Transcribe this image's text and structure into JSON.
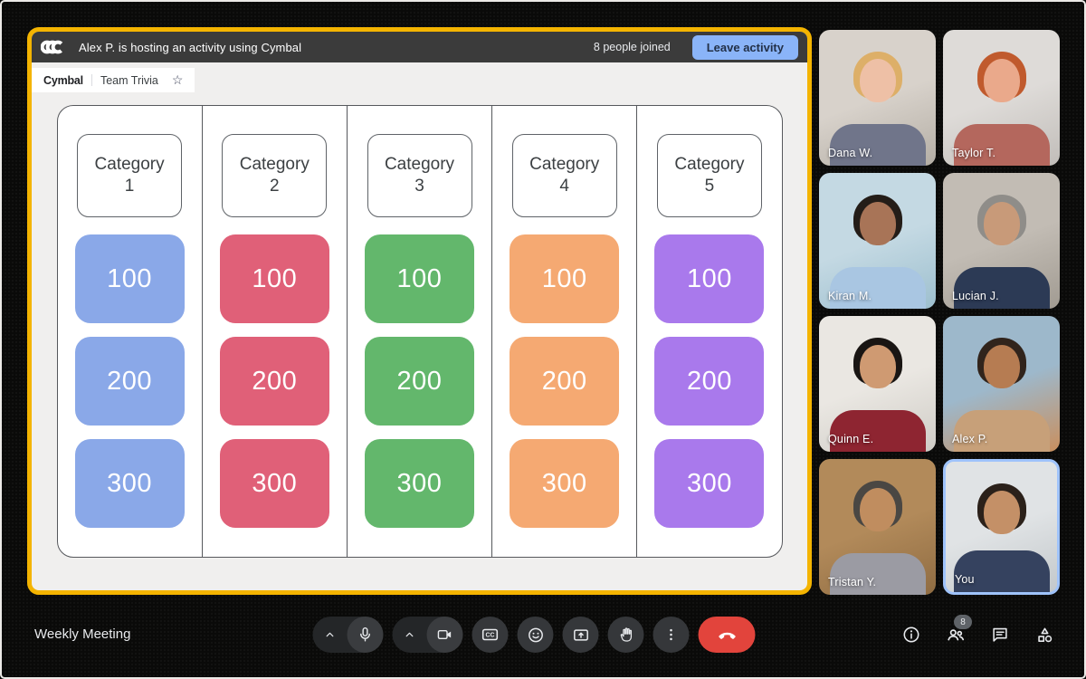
{
  "activity_banner": {
    "title": "Alex P. is hosting an activity using Cymbal",
    "people_joined": "8 people joined",
    "leave_button": "Leave activity",
    "leave_button_color": "#8AB4F8",
    "bar_color": "#3B3B3B"
  },
  "tab": {
    "brand": "Cymbal",
    "title": "Team Trivia",
    "star": "☆"
  },
  "frame_color": "#F4B400",
  "board": {
    "columns": [
      {
        "title_line1": "Category",
        "title_line2": "1",
        "tile_color": "#8AA8E8",
        "values": [
          "100",
          "200",
          "300"
        ]
      },
      {
        "title_line1": "Category",
        "title_line2": "2",
        "tile_color": "#E06078",
        "values": [
          "100",
          "200",
          "300"
        ]
      },
      {
        "title_line1": "Category",
        "title_line2": "3",
        "tile_color": "#63B76C",
        "values": [
          "100",
          "200",
          "300"
        ]
      },
      {
        "title_line1": "Category",
        "title_line2": "4",
        "tile_color": "#F5A972",
        "values": [
          "100",
          "200",
          "300"
        ]
      },
      {
        "title_line1": "Category",
        "title_line2": "5",
        "tile_color": "#A979EC",
        "values": [
          "100",
          "200",
          "300"
        ]
      }
    ]
  },
  "participants": [
    {
      "name": "Dana W.",
      "is_self": false,
      "bg1": "#d8d2cb",
      "bg2": "#b4aea5",
      "hair": "#ddaf68",
      "skin": "#eec0a6",
      "shirt": "#70758a"
    },
    {
      "name": "Taylor T.",
      "is_self": false,
      "bg1": "#dedbd8",
      "bg2": "#c1bdb9",
      "hair": "#c05a2d",
      "skin": "#eaa98b",
      "shirt": "#b4675d"
    },
    {
      "name": "Kiran M.",
      "is_self": false,
      "bg1": "#c4d9e3",
      "bg2": "#9dbfce",
      "hair": "#241d18",
      "skin": "#a87457",
      "shirt": "#a9c6e2"
    },
    {
      "name": "Lucian J.",
      "is_self": false,
      "bg1": "#c2bcb4",
      "bg2": "#a19b92",
      "hair": "#8f8d89",
      "skin": "#c89a79",
      "shirt": "#2c3a55"
    },
    {
      "name": "Quinn E.",
      "is_self": false,
      "bg1": "#eae7e2",
      "bg2": "#cfccc6",
      "hair": "#191513",
      "skin": "#cf9a72",
      "shirt": "#8e2531"
    },
    {
      "name": "Alex P.",
      "is_self": false,
      "bg1": "#9db8cb",
      "bg2": "#c98f5e",
      "hair": "#31241c",
      "skin": "#b67c52",
      "shirt": "#c7a079"
    },
    {
      "name": "Tristan Y.",
      "is_self": false,
      "bg1": "#b28a5a",
      "bg2": "#8f6c42",
      "hair": "#4a4743",
      "skin": "#c08d5f",
      "shirt": "#9b9ba3"
    },
    {
      "name": "You",
      "is_self": true,
      "bg1": "#e0e3e5",
      "bg2": "#c3c8cb",
      "hair": "#2b211a",
      "skin": "#c49067",
      "shirt": "#35425f"
    }
  ],
  "self_border_color": "#9FC3FB",
  "bottom_bar": {
    "meeting_title": "Weekly Meeting",
    "controls": [
      {
        "name": "microphone",
        "type": "combo",
        "icon": "mic"
      },
      {
        "name": "camera",
        "type": "combo",
        "icon": "camera"
      },
      {
        "name": "captions",
        "type": "circle",
        "icon": "captions"
      },
      {
        "name": "reactions",
        "type": "circle",
        "icon": "reactions"
      },
      {
        "name": "present",
        "type": "circle",
        "icon": "present"
      },
      {
        "name": "raise-hand",
        "type": "circle",
        "icon": "hand"
      },
      {
        "name": "more-options",
        "type": "circle",
        "icon": "more"
      },
      {
        "name": "end-call",
        "type": "end",
        "icon": "endcall"
      }
    ],
    "right_controls": [
      {
        "name": "meeting-details",
        "icon": "info",
        "badge": ""
      },
      {
        "name": "people",
        "icon": "people",
        "badge": "8"
      },
      {
        "name": "chat",
        "icon": "chat",
        "badge": ""
      },
      {
        "name": "activities",
        "icon": "activities",
        "badge": ""
      }
    ],
    "end_call_color": "#E2443C"
  }
}
